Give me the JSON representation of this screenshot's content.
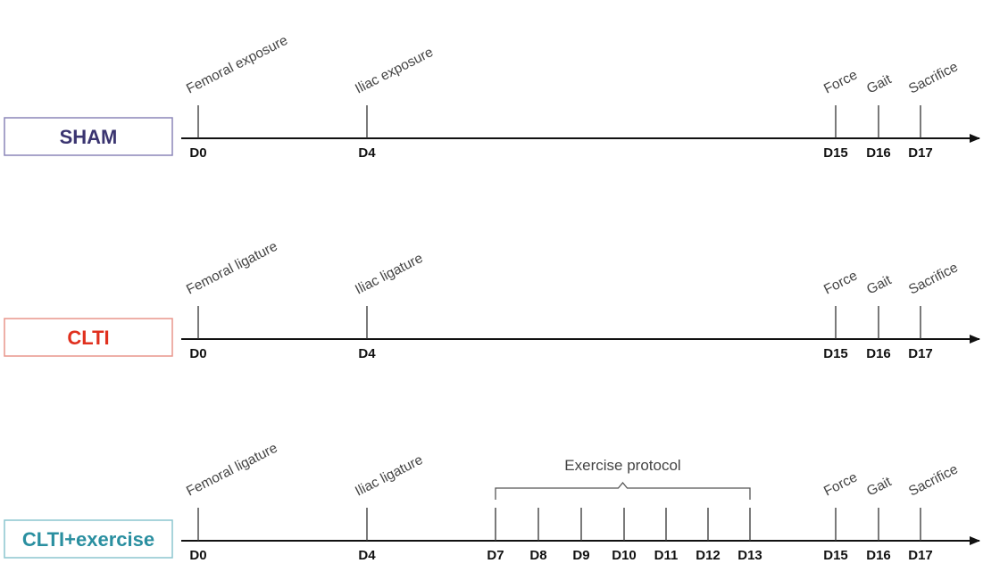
{
  "groups": [
    {
      "label": "SHAM",
      "color": "#3a3470",
      "border": "#8c86b8",
      "ticks": [
        {
          "day": "D0",
          "event": "Femoral exposure"
        },
        {
          "day": "D4",
          "event": "Iliac exposure"
        },
        {
          "day": "D15",
          "event": "Force"
        },
        {
          "day": "D16",
          "event": "Gait"
        },
        {
          "day": "D17",
          "event": "Sacrifice"
        }
      ]
    },
    {
      "label": "CLTI",
      "color": "#e0301e",
      "border": "#e8968c",
      "ticks": [
        {
          "day": "D0",
          "event": "Femoral ligature"
        },
        {
          "day": "D4",
          "event": "Iliac ligature"
        },
        {
          "day": "D15",
          "event": "Force"
        },
        {
          "day": "D16",
          "event": "Gait"
        },
        {
          "day": "D17",
          "event": "Sacrifice"
        }
      ]
    },
    {
      "label": "CLTI+exercise",
      "color": "#2a8fa0",
      "border": "#8cc6cf",
      "ticks": [
        {
          "day": "D0",
          "event": "Femoral ligature"
        },
        {
          "day": "D4",
          "event": "Iliac ligature"
        },
        {
          "day": "D7",
          "event": ""
        },
        {
          "day": "D8",
          "event": ""
        },
        {
          "day": "D9",
          "event": ""
        },
        {
          "day": "D10",
          "event": ""
        },
        {
          "day": "D11",
          "event": ""
        },
        {
          "day": "D12",
          "event": ""
        },
        {
          "day": "D13",
          "event": ""
        },
        {
          "day": "D15",
          "event": "Force"
        },
        {
          "day": "D16",
          "event": "Gait"
        },
        {
          "day": "D17",
          "event": "Sacrifice"
        }
      ],
      "bracket": {
        "label": "Exercise protocol",
        "from": "D7",
        "to": "D13"
      }
    }
  ]
}
